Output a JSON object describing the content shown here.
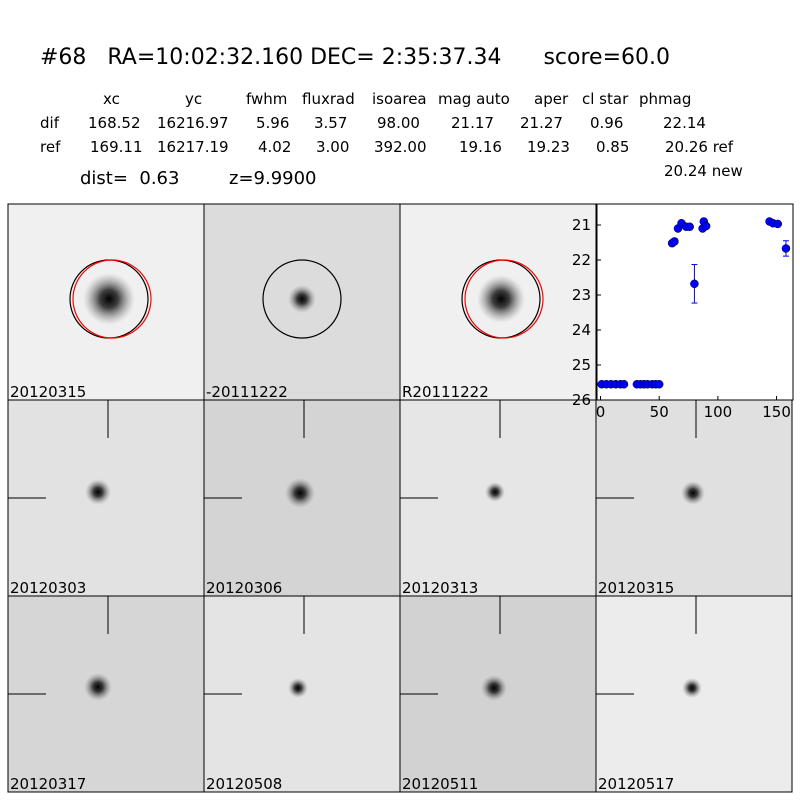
{
  "header": {
    "title": "#68   RA=10:02:32.160 DEC= 2:35:37.34      score=60.0"
  },
  "table": {
    "columns": [
      "xc",
      "yc",
      "fwhm",
      "fluxrad",
      "isoarea",
      "mag auto",
      "aper",
      "cl star",
      "phmag"
    ],
    "rows": [
      [
        "dif",
        "168.52",
        "16216.97",
        "5.96",
        "3.57",
        "98.00",
        "21.17",
        "21.27",
        "0.96",
        "22.14"
      ],
      [
        "ref",
        "169.11",
        "16217.19",
        "4.02",
        "3.00",
        "392.00",
        "19.16",
        "19.23",
        "0.85",
        "20.26 ref"
      ]
    ],
    "extra": "20.24 new"
  },
  "dist": "dist=  0.63",
  "z": "z=9.9900",
  "panels": [
    {
      "label": "20120315"
    },
    {
      "label": "-20111222"
    },
    {
      "label": "R20111222"
    },
    {
      "label": "20120303"
    },
    {
      "label": "20120306"
    },
    {
      "label": "20120313"
    },
    {
      "label": "20120315",
      "color": "#ff0000"
    },
    {
      "label": "20120317"
    },
    {
      "label": "20120508"
    },
    {
      "label": "20120511"
    },
    {
      "label": "20120517"
    }
  ],
  "chart_data": {
    "type": "scatter",
    "color": "#0000ff",
    "x": [
      1,
      5,
      9,
      13,
      17,
      20,
      31,
      34,
      37,
      40,
      44,
      47,
      50,
      61,
      63,
      66,
      69,
      73,
      76,
      80,
      87,
      88,
      90,
      144,
      147,
      151,
      158
    ],
    "values": [
      25.55,
      25.55,
      25.55,
      25.55,
      25.55,
      25.55,
      25.55,
      25.55,
      25.55,
      25.55,
      25.55,
      25.55,
      25.55,
      21.52,
      21.47,
      21.1,
      20.95,
      21.05,
      21.05,
      22.68,
      21.1,
      20.9,
      21.03,
      20.9,
      20.95,
      20.97,
      21.67
    ],
    "errors": [
      0,
      0,
      0,
      0,
      0,
      0,
      0,
      0,
      0,
      0,
      0,
      0,
      0,
      0.08,
      0.08,
      0.04,
      0.04,
      0.04,
      0.04,
      0.55,
      0.04,
      0.04,
      0.04,
      0.03,
      0.03,
      0.03,
      0.22
    ],
    "xlim": [
      -3,
      164
    ],
    "ylim": [
      26,
      20.4
    ],
    "xticks": [
      0,
      50,
      100,
      150
    ],
    "yticks": [
      21,
      22,
      23,
      24,
      25,
      26
    ]
  }
}
